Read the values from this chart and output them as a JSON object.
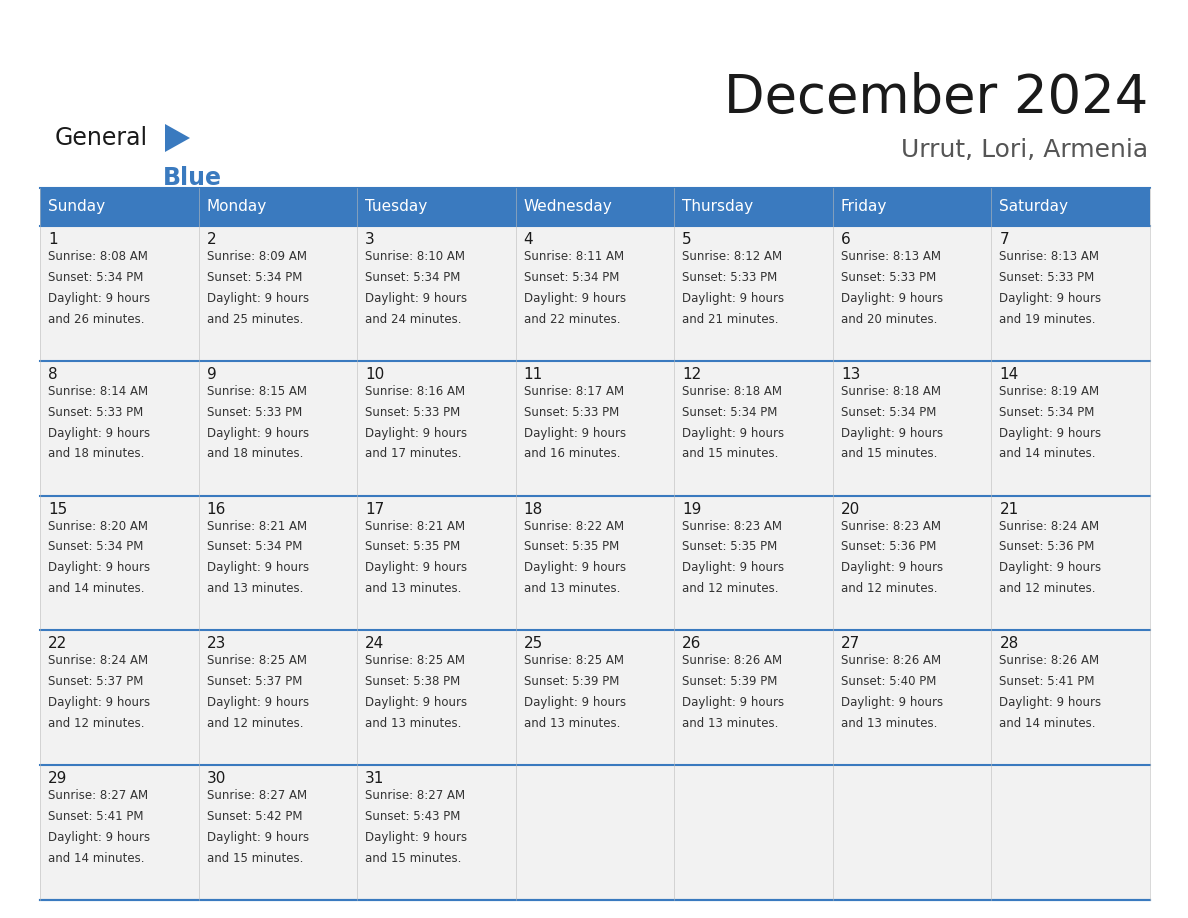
{
  "title": "December 2024",
  "subtitle": "Urrut, Lori, Armenia",
  "header_color": "#3a7abf",
  "header_text_color": "#ffffff",
  "cell_bg_color": "#f2f2f2",
  "border_color": "#3a7abf",
  "grid_line_color": "#3a7abf",
  "days_of_week": [
    "Sunday",
    "Monday",
    "Tuesday",
    "Wednesday",
    "Thursday",
    "Friday",
    "Saturday"
  ],
  "weeks": [
    [
      {
        "day": 1,
        "sunrise": "8:08 AM",
        "sunset": "5:34 PM",
        "daylight_hrs": 9,
        "daylight_min": 26
      },
      {
        "day": 2,
        "sunrise": "8:09 AM",
        "sunset": "5:34 PM",
        "daylight_hrs": 9,
        "daylight_min": 25
      },
      {
        "day": 3,
        "sunrise": "8:10 AM",
        "sunset": "5:34 PM",
        "daylight_hrs": 9,
        "daylight_min": 24
      },
      {
        "day": 4,
        "sunrise": "8:11 AM",
        "sunset": "5:34 PM",
        "daylight_hrs": 9,
        "daylight_min": 22
      },
      {
        "day": 5,
        "sunrise": "8:12 AM",
        "sunset": "5:33 PM",
        "daylight_hrs": 9,
        "daylight_min": 21
      },
      {
        "day": 6,
        "sunrise": "8:13 AM",
        "sunset": "5:33 PM",
        "daylight_hrs": 9,
        "daylight_min": 20
      },
      {
        "day": 7,
        "sunrise": "8:13 AM",
        "sunset": "5:33 PM",
        "daylight_hrs": 9,
        "daylight_min": 19
      }
    ],
    [
      {
        "day": 8,
        "sunrise": "8:14 AM",
        "sunset": "5:33 PM",
        "daylight_hrs": 9,
        "daylight_min": 18
      },
      {
        "day": 9,
        "sunrise": "8:15 AM",
        "sunset": "5:33 PM",
        "daylight_hrs": 9,
        "daylight_min": 18
      },
      {
        "day": 10,
        "sunrise": "8:16 AM",
        "sunset": "5:33 PM",
        "daylight_hrs": 9,
        "daylight_min": 17
      },
      {
        "day": 11,
        "sunrise": "8:17 AM",
        "sunset": "5:33 PM",
        "daylight_hrs": 9,
        "daylight_min": 16
      },
      {
        "day": 12,
        "sunrise": "8:18 AM",
        "sunset": "5:34 PM",
        "daylight_hrs": 9,
        "daylight_min": 15
      },
      {
        "day": 13,
        "sunrise": "8:18 AM",
        "sunset": "5:34 PM",
        "daylight_hrs": 9,
        "daylight_min": 15
      },
      {
        "day": 14,
        "sunrise": "8:19 AM",
        "sunset": "5:34 PM",
        "daylight_hrs": 9,
        "daylight_min": 14
      }
    ],
    [
      {
        "day": 15,
        "sunrise": "8:20 AM",
        "sunset": "5:34 PM",
        "daylight_hrs": 9,
        "daylight_min": 14
      },
      {
        "day": 16,
        "sunrise": "8:21 AM",
        "sunset": "5:34 PM",
        "daylight_hrs": 9,
        "daylight_min": 13
      },
      {
        "day": 17,
        "sunrise": "8:21 AM",
        "sunset": "5:35 PM",
        "daylight_hrs": 9,
        "daylight_min": 13
      },
      {
        "day": 18,
        "sunrise": "8:22 AM",
        "sunset": "5:35 PM",
        "daylight_hrs": 9,
        "daylight_min": 13
      },
      {
        "day": 19,
        "sunrise": "8:23 AM",
        "sunset": "5:35 PM",
        "daylight_hrs": 9,
        "daylight_min": 12
      },
      {
        "day": 20,
        "sunrise": "8:23 AM",
        "sunset": "5:36 PM",
        "daylight_hrs": 9,
        "daylight_min": 12
      },
      {
        "day": 21,
        "sunrise": "8:24 AM",
        "sunset": "5:36 PM",
        "daylight_hrs": 9,
        "daylight_min": 12
      }
    ],
    [
      {
        "day": 22,
        "sunrise": "8:24 AM",
        "sunset": "5:37 PM",
        "daylight_hrs": 9,
        "daylight_min": 12
      },
      {
        "day": 23,
        "sunrise": "8:25 AM",
        "sunset": "5:37 PM",
        "daylight_hrs": 9,
        "daylight_min": 12
      },
      {
        "day": 24,
        "sunrise": "8:25 AM",
        "sunset": "5:38 PM",
        "daylight_hrs": 9,
        "daylight_min": 13
      },
      {
        "day": 25,
        "sunrise": "8:25 AM",
        "sunset": "5:39 PM",
        "daylight_hrs": 9,
        "daylight_min": 13
      },
      {
        "day": 26,
        "sunrise": "8:26 AM",
        "sunset": "5:39 PM",
        "daylight_hrs": 9,
        "daylight_min": 13
      },
      {
        "day": 27,
        "sunrise": "8:26 AM",
        "sunset": "5:40 PM",
        "daylight_hrs": 9,
        "daylight_min": 13
      },
      {
        "day": 28,
        "sunrise": "8:26 AM",
        "sunset": "5:41 PM",
        "daylight_hrs": 9,
        "daylight_min": 14
      }
    ],
    [
      {
        "day": 29,
        "sunrise": "8:27 AM",
        "sunset": "5:41 PM",
        "daylight_hrs": 9,
        "daylight_min": 14
      },
      {
        "day": 30,
        "sunrise": "8:27 AM",
        "sunset": "5:42 PM",
        "daylight_hrs": 9,
        "daylight_min": 15
      },
      {
        "day": 31,
        "sunrise": "8:27 AM",
        "sunset": "5:43 PM",
        "daylight_hrs": 9,
        "daylight_min": 15
      },
      null,
      null,
      null,
      null
    ]
  ]
}
